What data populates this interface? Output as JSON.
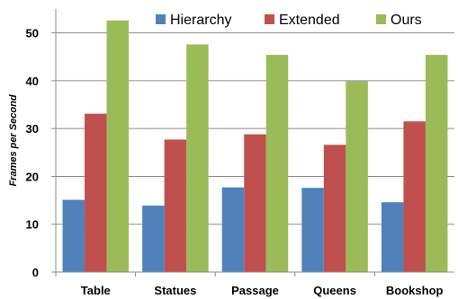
{
  "chart_data": {
    "type": "bar",
    "categories": [
      "Table",
      "Statues",
      "Passage",
      "Queens",
      "Bookshop"
    ],
    "series": [
      {
        "name": "Hierarchy",
        "color": "#4f81bd",
        "values": [
          15.1,
          13.9,
          17.7,
          17.6,
          14.6
        ]
      },
      {
        "name": "Extended",
        "color": "#c0504d",
        "values": [
          33.1,
          27.7,
          28.8,
          26.6,
          31.5
        ]
      },
      {
        "name": "Ours",
        "color": "#9bbb59",
        "values": [
          52.6,
          47.6,
          45.4,
          39.9,
          45.4
        ]
      }
    ],
    "title": "",
    "xlabel": "",
    "ylabel": "Frames per Second",
    "ylim": [
      0,
      55
    ],
    "yticks": [
      0,
      10,
      20,
      30,
      40,
      50
    ],
    "grid": true,
    "legend": "top"
  }
}
